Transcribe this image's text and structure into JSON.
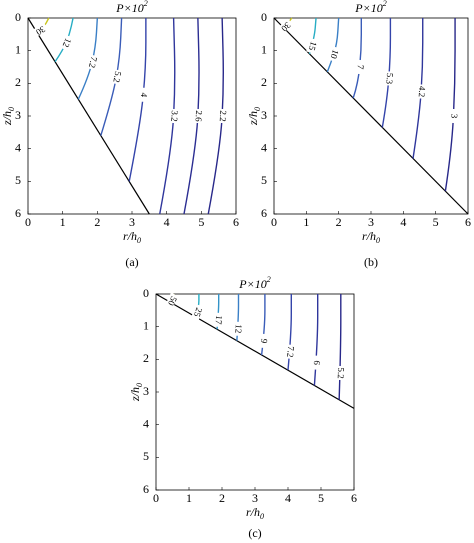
{
  "chart_data": [
    {
      "type": "contour",
      "title": {
        "text": "P×10",
        "sup": "2"
      },
      "panel_label": "(a)",
      "xlabel": {
        "text": "r/h",
        "sub": "0"
      },
      "ylabel": {
        "text": "z/h",
        "sub": "0"
      },
      "xlim": [
        0,
        6
      ],
      "ylim": [
        0,
        6
      ],
      "y_inverted": true,
      "xticks": [
        0,
        1,
        2,
        3,
        4,
        5,
        6
      ],
      "yticks": [
        0,
        1,
        2,
        3,
        4,
        5,
        6
      ],
      "boundary": {
        "x": [
          0,
          3.5
        ],
        "y": [
          0,
          6
        ]
      },
      "contours": [
        {
          "level": 30,
          "color": "#c9c41e",
          "x": [
            0.6,
            0.45,
            0.25
          ],
          "y": [
            0,
            0.3,
            0.43
          ]
        },
        {
          "level": 12,
          "color": "#27adc4",
          "x": [
            1.3,
            1.2,
            1.0,
            0.78
          ],
          "y": [
            0,
            0.5,
            1.0,
            1.34
          ]
        },
        {
          "level": 7.2,
          "color": "#3a7fc6",
          "x": [
            2.0,
            1.95,
            1.75,
            1.45
          ],
          "y": [
            0,
            0.9,
            1.8,
            2.49
          ]
        },
        {
          "level": 5.2,
          "color": "#3a5cb8",
          "x": [
            2.7,
            2.65,
            2.45,
            2.1
          ],
          "y": [
            0,
            1.2,
            2.4,
            3.6
          ]
        },
        {
          "level": 4,
          "color": "#3444aa",
          "x": [
            3.4,
            3.4,
            3.25,
            2.92
          ],
          "y": [
            0,
            1.5,
            3.2,
            5.0
          ]
        },
        {
          "level": 3.2,
          "color": "#2f369c",
          "x": [
            4.2,
            4.25,
            4.15,
            3.8
          ],
          "y": [
            0,
            2,
            4,
            6
          ]
        },
        {
          "level": 2.6,
          "color": "#2b2d92",
          "x": [
            4.9,
            4.95,
            4.85,
            4.5
          ],
          "y": [
            0,
            2,
            4,
            6
          ]
        },
        {
          "level": 2.2,
          "color": "#28288a",
          "x": [
            5.6,
            5.65,
            5.55,
            5.2
          ],
          "y": [
            0,
            2,
            4,
            6
          ]
        }
      ]
    },
    {
      "type": "contour",
      "title": {
        "text": "P×10",
        "sup": "2"
      },
      "panel_label": "(b)",
      "xlabel": {
        "text": "r/h",
        "sub": "0"
      },
      "ylabel": {
        "text": "z/h",
        "sub": "0"
      },
      "xlim": [
        0,
        6
      ],
      "ylim": [
        0,
        6
      ],
      "y_inverted": true,
      "xticks": [
        0,
        1,
        2,
        3,
        4,
        5,
        6
      ],
      "yticks": [
        0,
        1,
        2,
        3,
        4,
        5,
        6
      ],
      "boundary": {
        "x": [
          0,
          6
        ],
        "y": [
          0,
          6
        ]
      },
      "contours": [
        {
          "level": 30,
          "color": "#c9c41e",
          "x": [
            0.55,
            0.4,
            0.3
          ],
          "y": [
            0,
            0.2,
            0.3
          ]
        },
        {
          "level": 15,
          "color": "#27adc4",
          "x": [
            1.3,
            1.25,
            1.1
          ],
          "y": [
            0,
            0.6,
            1.1
          ]
        },
        {
          "level": 10,
          "color": "#3a7fc6",
          "x": [
            2.0,
            1.95,
            1.75,
            1.65
          ],
          "y": [
            0,
            0.8,
            1.4,
            1.65
          ]
        },
        {
          "level": 7,
          "color": "#3a5cb8",
          "x": [
            2.7,
            2.7,
            2.6,
            2.45
          ],
          "y": [
            0,
            1,
            2,
            2.45
          ]
        },
        {
          "level": 5.3,
          "color": "#3444aa",
          "x": [
            3.6,
            3.6,
            3.5,
            3.35
          ],
          "y": [
            0,
            1.2,
            2.5,
            3.35
          ]
        },
        {
          "level": 4.2,
          "color": "#2f369c",
          "x": [
            4.6,
            4.6,
            4.5,
            4.3
          ],
          "y": [
            0,
            1.5,
            3,
            4.3
          ]
        },
        {
          "level": 3,
          "color": "#28288a",
          "x": [
            5.6,
            5.6,
            5.5,
            5.3
          ],
          "y": [
            0,
            2,
            4,
            5.3
          ]
        }
      ]
    },
    {
      "type": "contour",
      "title": {
        "text": "P×10",
        "sup": "2"
      },
      "panel_label": "(c)",
      "xlabel": {
        "text": "r/h",
        "sub": "0"
      },
      "ylabel": {
        "text": "z/h",
        "sub": "0"
      },
      "xlim": [
        0,
        6
      ],
      "ylim": [
        0,
        6
      ],
      "y_inverted": true,
      "xticks": [
        0,
        1,
        2,
        3,
        4,
        5,
        6
      ],
      "yticks": [
        0,
        1,
        2,
        3,
        4,
        5,
        6
      ],
      "boundary": {
        "x": [
          0,
          6
        ],
        "y": [
          0,
          3.5
        ]
      },
      "contours": [
        {
          "level": 50,
          "color": "#c9c41e",
          "x": [
            0.55,
            0.5,
            0.45
          ],
          "y": [
            0,
            0.15,
            0.26
          ]
        },
        {
          "level": 25,
          "color": "#27adc4",
          "x": [
            1.3,
            1.3,
            1.2
          ],
          "y": [
            0,
            0.4,
            0.7
          ]
        },
        {
          "level": 17,
          "color": "#3393c8",
          "x": [
            1.9,
            1.9,
            1.85
          ],
          "y": [
            0,
            0.5,
            1.08
          ]
        },
        {
          "level": 12,
          "color": "#3a7fc6",
          "x": [
            2.5,
            2.5,
            2.45
          ],
          "y": [
            0,
            0.7,
            1.43
          ]
        },
        {
          "level": 9,
          "color": "#3a5cb8",
          "x": [
            3.3,
            3.3,
            3.2
          ],
          "y": [
            0,
            1,
            1.87
          ]
        },
        {
          "level": 7.2,
          "color": "#3444aa",
          "x": [
            4.1,
            4.1,
            4.0
          ],
          "y": [
            0,
            1.2,
            2.33
          ]
        },
        {
          "level": 6,
          "color": "#2f369c",
          "x": [
            4.9,
            4.9,
            4.8
          ],
          "y": [
            0,
            1.4,
            2.8
          ]
        },
        {
          "level": 5.2,
          "color": "#28288a",
          "x": [
            5.6,
            5.6,
            5.55
          ],
          "y": [
            0,
            1.6,
            3.24
          ]
        }
      ]
    }
  ]
}
